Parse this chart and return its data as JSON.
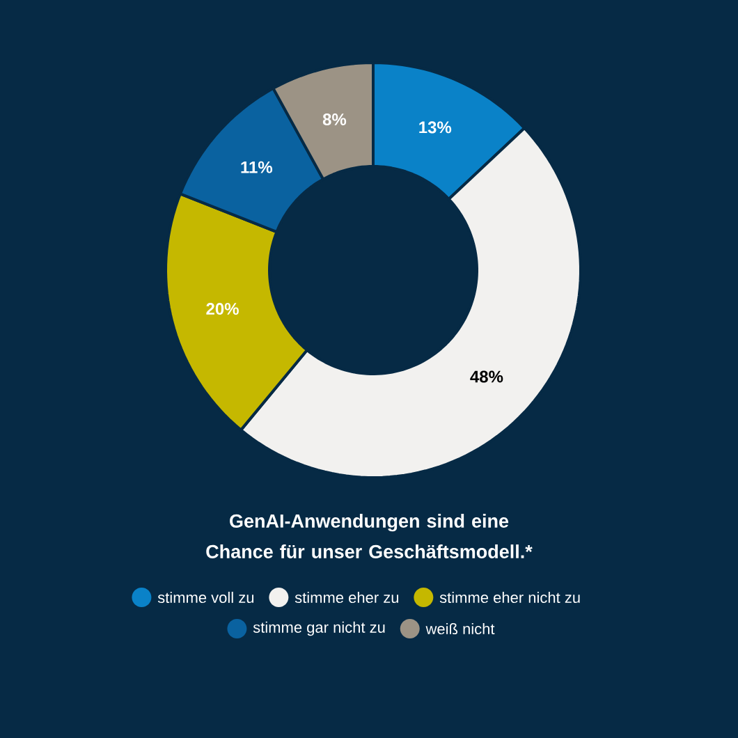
{
  "chart_data": {
    "type": "donut",
    "title": "GenAI-Anwendungen sind eine Chance für unser Geschäftsmodell.*",
    "categories": [
      "stimme voll zu",
      "stimme eher zu",
      "stimme eher nicht zu",
      "stimme gar nicht zu",
      "weiß nicht"
    ],
    "values": [
      13,
      48,
      20,
      11,
      8
    ],
    "value_labels": [
      "13%",
      "48%",
      "20%",
      "11%",
      "8%"
    ],
    "colors": [
      "#0a82c8",
      "#f2f1ef",
      "#c5b800",
      "#0a62a0",
      "#9c9385"
    ],
    "legend": "bottom"
  }
}
